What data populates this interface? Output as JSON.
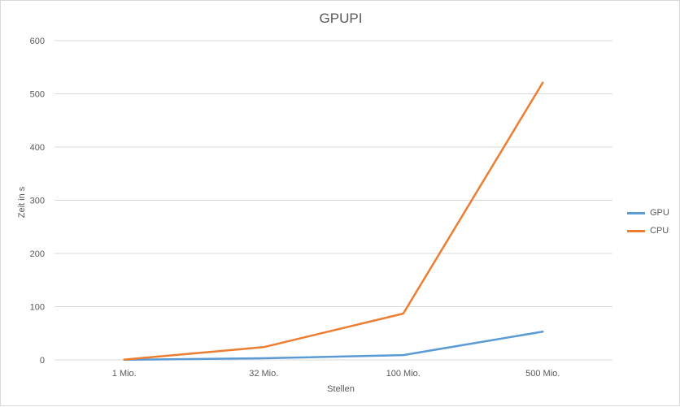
{
  "chart_data": {
    "type": "line",
    "title": "GPUPI",
    "xlabel": "Stellen",
    "ylabel": "Zeit in s",
    "categories": [
      "1 Mio.",
      "32 Mio.",
      "100 Mio.",
      "500 Mio."
    ],
    "ylim": [
      0,
      600
    ],
    "yticks": [
      0,
      100,
      200,
      300,
      400,
      500,
      600
    ],
    "grid": true,
    "legend_position": "right",
    "series": [
      {
        "name": "GPU",
        "color": "#5b9bd5",
        "values": [
          0.2,
          3,
          9,
          53
        ]
      },
      {
        "name": "CPU",
        "color": "#ed7d31",
        "values": [
          0.5,
          24,
          87,
          521
        ]
      }
    ]
  }
}
